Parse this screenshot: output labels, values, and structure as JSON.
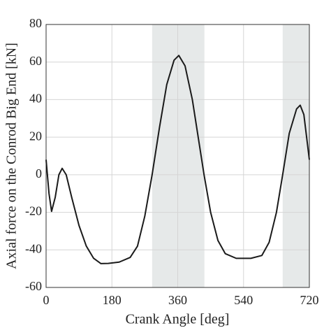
{
  "chart_data": {
    "type": "line",
    "x_label": "Crank Angle [deg]",
    "y_label": "Axial force on the Conrod Big End [kN]",
    "x": [
      0,
      8,
      15,
      25,
      35,
      44,
      55,
      70,
      90,
      110,
      130,
      150,
      170,
      200,
      230,
      250,
      270,
      290,
      310,
      330,
      350,
      363,
      380,
      400,
      420,
      432,
      450,
      470,
      490,
      520,
      560,
      590,
      610,
      630,
      647,
      665,
      685,
      695,
      705,
      720
    ],
    "series": [
      {
        "color": "#1a1a1a",
        "values": [
          8,
          -10,
          -19.5,
          -12,
          0,
          3.4,
          0,
          -12,
          -27,
          -38,
          -44.5,
          -47.3,
          -47.2,
          -46.5,
          -44,
          -38,
          -22,
          0,
          25,
          48,
          61,
          63.5,
          58,
          40,
          15,
          0,
          -20,
          -35,
          -42,
          -44.5,
          -44.5,
          -43,
          -36,
          -20,
          0,
          22,
          35,
          37,
          32,
          8
        ]
      }
    ],
    "shaded_regions": [
      [
        290,
        433
      ],
      [
        647,
        720
      ]
    ],
    "shade_color": "#e6e9e9",
    "xlim": [
      0,
      720
    ],
    "xticks": [
      0,
      180,
      360,
      540,
      720
    ],
    "ylim": [
      -60,
      80
    ],
    "yticks": [
      -60,
      -40,
      -20,
      0,
      20,
      40,
      60,
      80
    ],
    "grid": true
  }
}
